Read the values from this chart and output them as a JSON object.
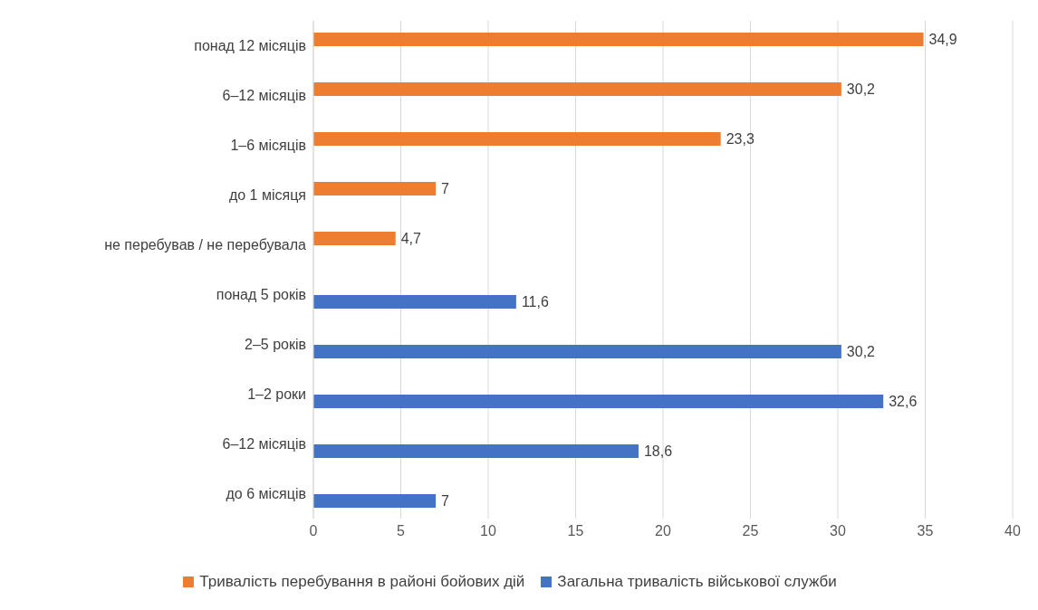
{
  "chart_data": {
    "type": "bar",
    "orientation": "horizontal",
    "categories": [
      "понад 12 місяців",
      "6–12 місяців",
      "1–6 місяців",
      "до 1 місяця",
      "не перебував / не перебувала",
      "понад 5 років",
      "2–5 років",
      "1–2 роки",
      "6–12 місяців",
      "до 6 місяців"
    ],
    "series": [
      {
        "name": "Тривалість перебування в районі бойових дій",
        "color": "#ed7d31",
        "values": [
          34.9,
          30.2,
          23.3,
          7,
          4.7,
          null,
          null,
          null,
          null,
          null
        ],
        "value_labels": [
          "34,9",
          "30,2",
          "23,3",
          "7",
          "4,7",
          null,
          null,
          null,
          null,
          null
        ]
      },
      {
        "name": "Загальна тривалість військової служби",
        "color": "#4472c4",
        "values": [
          null,
          null,
          null,
          null,
          null,
          11.6,
          30.2,
          32.6,
          18.6,
          7
        ],
        "value_labels": [
          null,
          null,
          null,
          null,
          null,
          "11,6",
          "30,2",
          "32,6",
          "18,6",
          "7"
        ]
      }
    ],
    "xlim": [
      0,
      40
    ],
    "xticks": [
      0,
      5,
      10,
      15,
      20,
      25,
      30,
      35,
      40
    ],
    "grid": "x",
    "legend": "bottom"
  }
}
